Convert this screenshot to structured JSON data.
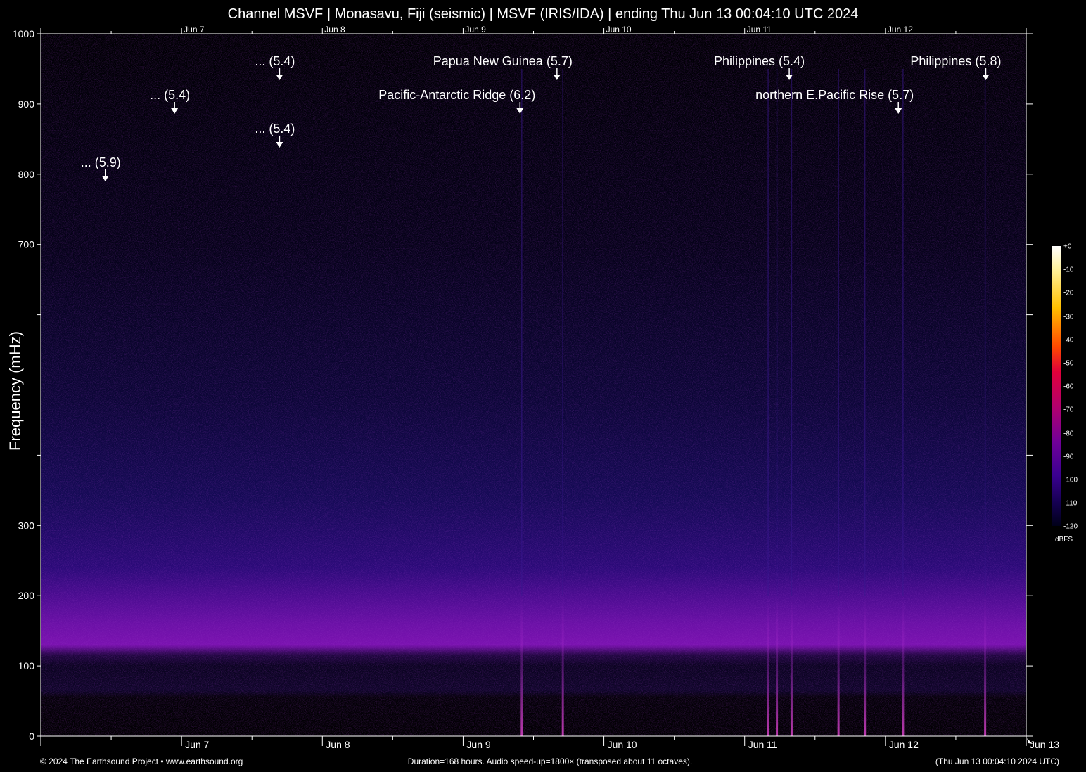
{
  "title": "Channel MSVF | Monasavu, Fiji (seismic) | MSVF (IRIS/IDA) | ending Thu Jun 13 00:04:10 UTC 2024",
  "footer": {
    "left": "© 2024 The Earthsound Project • www.earthsound.org",
    "center": "Duration=168 hours. Audio speed-up=1800× (transposed about 11 octaves).",
    "right": "(Thu Jun 13 00:04:10 2024 UTC)"
  },
  "colorbar": {
    "unit": "dBFS",
    "labels": [
      "+0",
      "-10",
      "-20",
      "-30",
      "-40",
      "-50",
      "-60",
      "-70",
      "-80",
      "-90",
      "-100",
      "-110",
      "-120"
    ]
  },
  "colors": {
    "background": "#000000",
    "noise_low": "#7a10b0",
    "noise_high": "#0a0440"
  },
  "chart_data": {
    "type": "heatmap",
    "ylabel": "Frequency (mHz)",
    "xlabel": "",
    "ylim": [
      0,
      1000
    ],
    "xlim_hours": [
      0,
      168
    ],
    "yticks_labeled": [
      "0",
      "100",
      "200",
      "300",
      "700",
      "800",
      "900",
      "1000"
    ],
    "ytick_values": [
      0,
      100,
      200,
      300,
      700,
      800,
      900,
      1000
    ],
    "yticks_unlabeled_values": [
      400,
      500,
      600
    ],
    "xtick_labels": [
      {
        "label": "Jun  7",
        "hour": 24
      },
      {
        "label": "Jun  8",
        "hour": 48
      },
      {
        "label": "Jun  9",
        "hour": 72
      },
      {
        "label": "Jun 10",
        "hour": 96
      },
      {
        "label": "Jun 11",
        "hour": 120
      },
      {
        "label": "Jun 12",
        "hour": 144
      },
      {
        "label": "Jun 13",
        "hour": 168
      }
    ],
    "events": [
      {
        "label": "... (5.9)",
        "hour": 11.0,
        "row": 4
      },
      {
        "label": "... (5.4)",
        "hour": 22.8,
        "row": 2
      },
      {
        "label": "... (5.4)",
        "hour": 40.7,
        "row": 1
      },
      {
        "label": "... (5.4)",
        "hour": 40.7,
        "row": 3
      },
      {
        "label": "Pacific-Antarctic Ridge (6.2)",
        "hour": 81.7,
        "row": 2
      },
      {
        "label": "Papua New Guinea (5.7)",
        "hour": 88.0,
        "row": 1
      },
      {
        "label": "Philippines (5.4)",
        "hour": 127.6,
        "row": 1
      },
      {
        "label": "northern E.Pacific Rise (5.7)",
        "hour": 146.2,
        "row": 2
      },
      {
        "label": "Philippines (5.8)",
        "hour": 161.1,
        "row": 1
      }
    ],
    "bright_streaks_hour": [
      82.0,
      89.0,
      124.0,
      125.5,
      128.0,
      136.0,
      140.5,
      147.0,
      161.0
    ]
  }
}
